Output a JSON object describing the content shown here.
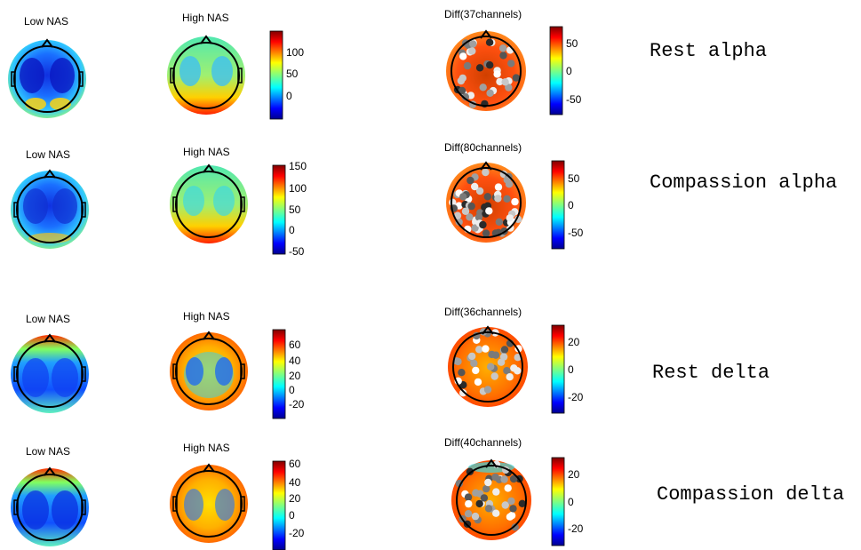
{
  "rows": [
    {
      "label": "Rest alpha",
      "low_title": "Low NAS",
      "high_title": "High NAS",
      "diff_title": "Diff(37channels)",
      "cb_ticks": [
        "100",
        "50",
        "0"
      ],
      "diff_ticks": [
        "50",
        "0",
        "-50"
      ]
    },
    {
      "label": "Compassion alpha",
      "low_title": "Low NAS",
      "high_title": "High NAS",
      "diff_title": "Diff(80channels)",
      "cb_ticks": [
        "150",
        "100",
        "50",
        "0",
        "-50"
      ],
      "diff_ticks": [
        "50",
        "0",
        "-50"
      ]
    },
    {
      "label": "Rest delta",
      "low_title": "Low NAS",
      "high_title": "High NAS",
      "diff_title": "Diff(36channels)",
      "cb_ticks": [
        "60",
        "40",
        "20",
        "0",
        "-20"
      ],
      "diff_ticks": [
        "20",
        "0",
        "-20"
      ]
    },
    {
      "label": "Compassion delta",
      "low_title": "Low NAS",
      "high_title": "High NAS",
      "diff_title": "Diff(40channels)",
      "cb_ticks": [
        "60",
        "40",
        "20",
        "0",
        "-20"
      ],
      "diff_ticks": [
        "20",
        "0",
        "-20"
      ]
    }
  ],
  "colors": {
    "jet": [
      "#00008f",
      "#0000ff",
      "#0080ff",
      "#00ffff",
      "#80ff80",
      "#ffff00",
      "#ff8000",
      "#ff0000",
      "#800000"
    ],
    "outline": "#000000",
    "channel_dark": "#3a3a3a",
    "channel_light": "#e6e6e6"
  }
}
